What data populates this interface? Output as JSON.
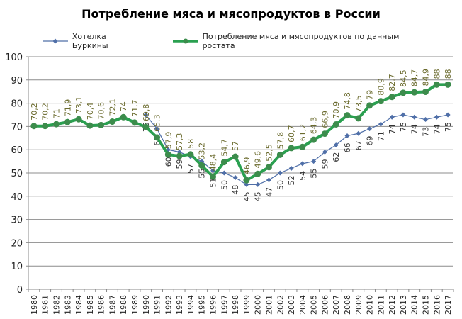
{
  "chart_data": {
    "type": "line",
    "title": "Потребление мяса и мясопродуктов в России",
    "xlabel": "",
    "ylabel": "",
    "ylim": [
      0,
      100
    ],
    "yticks": [
      0,
      10,
      20,
      30,
      40,
      50,
      60,
      70,
      80,
      90,
      100
    ],
    "grid": true,
    "legend_position": "top",
    "categories": [
      "1980",
      "1981",
      "1982",
      "1983",
      "1984",
      "1985",
      "1986",
      "1987",
      "1988",
      "1989",
      "1990",
      "1991",
      "1992",
      "1993",
      "1994",
      "1995",
      "1996",
      "1997",
      "1998",
      "1999",
      "2000",
      "2001",
      "2002",
      "2003",
      "2004",
      "2005",
      "2006",
      "2007",
      "2008",
      "2009",
      "2010",
      "2011",
      "2012",
      "2013",
      "2014",
      "2015",
      "2016",
      "2017"
    ],
    "series": [
      {
        "name": "Хотелка Буркины",
        "color": "#4f6fa8",
        "marker": "diamond",
        "values": [
          null,
          null,
          null,
          null,
          null,
          null,
          null,
          null,
          null,
          null,
          75,
          69,
          60,
          59,
          57,
          55,
          51,
          50,
          48,
          45,
          45,
          47,
          50,
          52,
          54,
          55,
          59,
          62,
          66,
          67,
          69,
          71,
          74,
          75,
          74,
          73,
          74,
          75
        ],
        "labels": [
          null,
          null,
          null,
          null,
          null,
          null,
          null,
          null,
          null,
          null,
          "75",
          "69",
          "60",
          "59",
          "57",
          "55",
          "51",
          "50",
          "48",
          "45",
          "45",
          "47",
          "50",
          "52",
          "54",
          "55",
          "59",
          "62",
          "66",
          "67",
          "69",
          "71",
          "74",
          "75",
          "74",
          "73",
          "74",
          "75"
        ]
      },
      {
        "name": "Потребление  мяса и мясопродуктов по данным ростата",
        "color": "#2aa050",
        "marker": "circle",
        "values": [
          70.2,
          70.2,
          71,
          71.9,
          73.1,
          70.4,
          70.6,
          72.1,
          74,
          71.7,
          69.8,
          65.3,
          57.9,
          57.3,
          58,
          53.2,
          48.4,
          54.7,
          57,
          46.9,
          49.6,
          52.5,
          57.8,
          60.7,
          61.2,
          64.3,
          66.9,
          70.9,
          74.8,
          73.5,
          79,
          80.9,
          82.7,
          84.5,
          84.7,
          84.9,
          88,
          88
        ],
        "labels": [
          "70,2",
          "70,2",
          "71",
          "71,9",
          "73,1",
          "70,4",
          "70,6",
          "72,1",
          "74",
          "71,7",
          "69,8",
          "65,3",
          "57,9",
          "57,3",
          "58",
          "53,2",
          "48,4",
          "54,7",
          "57",
          "46,9",
          "49,6",
          "52,5",
          "57,8",
          "60,7",
          "61,2",
          "64,3",
          "66,9",
          "70,9",
          "74,8",
          "73,5",
          "79",
          "80,9",
          "82,7",
          "84,5",
          "84,7",
          "84,9",
          "88",
          "88"
        ]
      }
    ]
  },
  "legend": {
    "item1": "Хотелка Буркины",
    "item2": "Потребление  мяса и мясопродуктов по данным ростата"
  }
}
